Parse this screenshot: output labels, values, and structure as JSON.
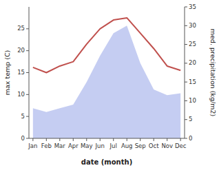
{
  "chart_data": {
    "type": "line",
    "categories": [
      "Jan",
      "Feb",
      "Mar",
      "Apr",
      "May",
      "Jun",
      "Jul",
      "Aug",
      "Sep",
      "Oct",
      "Nov",
      "Dec"
    ],
    "series": [
      {
        "type": "area",
        "axis": "y2",
        "color": "#c5cdf2",
        "values": [
          8.0,
          7.0,
          8.0,
          9.0,
          15.0,
          22.0,
          28.0,
          30.0,
          20.0,
          13.0,
          11.5,
          12.0
        ]
      },
      {
        "type": "line",
        "color": "#c0504d",
        "values": [
          16.2,
          15.0,
          16.5,
          17.5,
          21.5,
          25.0,
          27.0,
          27.5,
          24.0,
          20.5,
          16.5,
          15.5
        ]
      }
    ],
    "xlabel": "date (month)",
    "ylabel": "max temp (C)",
    "y2label": "med. precipitation (kg/m2)",
    "ylim": [
      0,
      30
    ],
    "yticks": [
      0,
      5,
      10,
      15,
      20,
      25
    ],
    "y2lim": [
      0,
      35
    ],
    "y2ticks": [
      0,
      5,
      10,
      15,
      20,
      25,
      30,
      35
    ]
  }
}
